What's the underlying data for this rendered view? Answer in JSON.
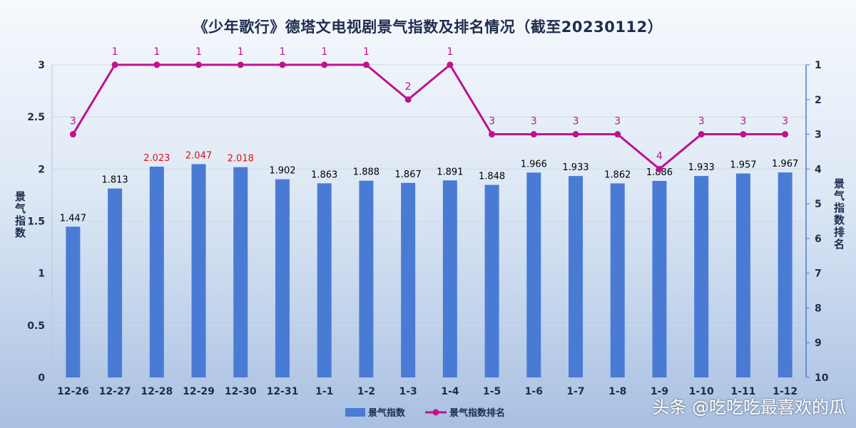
{
  "watermark": "头条 @吃吃吃最喜欢的瓜",
  "chart_data": {
    "type": "bar",
    "title": "《少年歌行》德塔文电视剧景气指数及排名情况（截至20230112）",
    "categories": [
      "12-26",
      "12-27",
      "12-28",
      "12-29",
      "12-30",
      "12-31",
      "1-1",
      "1-2",
      "1-3",
      "1-4",
      "1-5",
      "1-6",
      "1-7",
      "1-8",
      "1-9",
      "1-10",
      "1-11",
      "1-12"
    ],
    "ylabel_left": "景气指数",
    "ylabel_right": "景气指数排名",
    "ylim_left": [
      0,
      3
    ],
    "yticks_left": [
      "0",
      "0.5",
      "1",
      "1.5",
      "2",
      "2.5",
      "3"
    ],
    "ylim_right": [
      1,
      10
    ],
    "yticks_right": [
      "1",
      "2",
      "3",
      "4",
      "5",
      "6",
      "7",
      "8",
      "9",
      "10"
    ],
    "right_axis_reversed": true,
    "legend_position": "bottom",
    "series": [
      {
        "name": "景气指数",
        "type": "bar",
        "axis": "left",
        "color": "#4a7bd4",
        "values": [
          1.447,
          1.813,
          2.023,
          2.047,
          2.018,
          1.902,
          1.863,
          1.888,
          1.867,
          1.891,
          1.848,
          1.966,
          1.933,
          1.862,
          1.886,
          1.933,
          1.957,
          1.967
        ],
        "labels": [
          "1.447",
          "1.813",
          "2.023",
          "2.047",
          "2.018",
          "1.902",
          "1.863",
          "1.888",
          "1.867",
          "1.891",
          "1.848",
          "1.966",
          "1.933",
          "1.862",
          "1.886",
          "1.933",
          "1.957",
          "1.967"
        ],
        "highlight_label_color": "#e01010",
        "highlight_indices": [
          2,
          3,
          4
        ],
        "label_color": "#000000"
      },
      {
        "name": "景气指数排名",
        "type": "line",
        "axis": "right",
        "color": "#c0128e",
        "values": [
          3,
          1,
          1,
          1,
          1,
          1,
          1,
          1,
          2,
          1,
          3,
          3,
          3,
          3,
          4,
          3,
          3,
          3
        ],
        "labels": [
          "3",
          "1",
          "1",
          "1",
          "1",
          "1",
          "1",
          "1",
          "2",
          "1",
          "3",
          "3",
          "3",
          "3",
          "4",
          "3",
          "3",
          "3"
        ]
      }
    ],
    "grid": true
  }
}
